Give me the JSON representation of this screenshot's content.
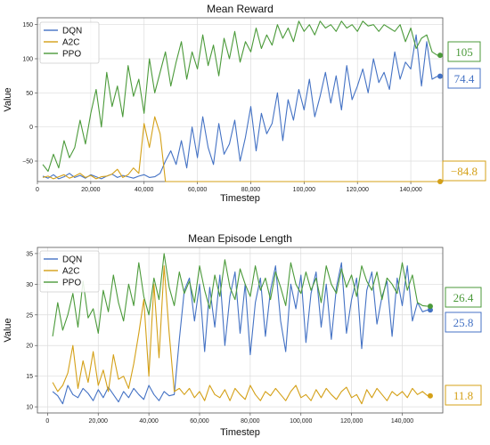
{
  "chart_data": [
    {
      "type": "line",
      "title": "Mean Reward",
      "xlabel": "Timestep",
      "ylabel": "Value",
      "xlim": [
        0,
        152000
      ],
      "ylim": [
        -80,
        160
      ],
      "xticks": [
        0,
        20000,
        40000,
        60000,
        80000,
        100000,
        120000,
        140000
      ],
      "xtick_labels": [
        "0",
        "20,000",
        "40,000",
        "60,000",
        "80,000",
        "100,000",
        "120,000",
        "140,000"
      ],
      "yticks": [
        -50,
        0,
        50,
        100,
        150
      ],
      "ytick_labels": [
        "−50",
        "0",
        "50",
        "100",
        "150"
      ],
      "grid": true,
      "legend_position": "top-left",
      "series": [
        {
          "name": "DQN",
          "color": "#4472c4",
          "x": [
            2000,
            4000,
            6000,
            8000,
            10000,
            12000,
            14000,
            16000,
            18000,
            20000,
            22000,
            24000,
            26000,
            28000,
            30000,
            32000,
            34000,
            36000,
            38000,
            40000,
            42000,
            44000,
            46000,
            48000,
            50000,
            52000,
            54000,
            56000,
            58000,
            60000,
            62000,
            64000,
            66000,
            68000,
            70000,
            72000,
            74000,
            76000,
            78000,
            80000,
            82000,
            84000,
            86000,
            88000,
            90000,
            92000,
            94000,
            96000,
            98000,
            100000,
            102000,
            104000,
            106000,
            108000,
            110000,
            112000,
            114000,
            116000,
            118000,
            120000,
            122000,
            124000,
            126000,
            128000,
            130000,
            132000,
            134000,
            136000,
            138000,
            140000,
            142000,
            144000,
            146000,
            148000,
            150000
          ],
          "values": [
            -72,
            -75,
            -70,
            -76,
            -73,
            -68,
            -74,
            -71,
            -75,
            -70,
            -73,
            -76,
            -72,
            -69,
            -74,
            -71,
            -73,
            -75,
            -72,
            -70,
            -74,
            -73,
            -68,
            -50,
            -35,
            -55,
            -20,
            -60,
            0,
            -45,
            15,
            -30,
            -55,
            5,
            -40,
            -25,
            10,
            -50,
            -15,
            30,
            -35,
            20,
            -10,
            5,
            50,
            -20,
            40,
            10,
            55,
            25,
            70,
            15,
            45,
            80,
            35,
            75,
            25,
            90,
            40,
            60,
            85,
            50,
            100,
            65,
            80,
            55,
            110,
            70,
            95,
            85,
            135,
            60,
            125,
            70,
            74.4
          ]
        },
        {
          "name": "A2C",
          "color": "#d4a017",
          "x": [
            2000,
            4000,
            6000,
            8000,
            10000,
            12000,
            14000,
            16000,
            18000,
            20000,
            22000,
            24000,
            26000,
            28000,
            30000,
            32000,
            34000,
            36000,
            38000,
            40000,
            42000,
            44000,
            46000,
            48000,
            50000,
            55000,
            60000,
            65000,
            70000,
            75000,
            80000,
            85000,
            90000,
            95000,
            100000,
            105000,
            110000,
            115000,
            120000,
            125000,
            130000,
            135000,
            140000,
            145000,
            150000
          ],
          "values": [
            -74,
            -72,
            -76,
            -73,
            -70,
            -75,
            -72,
            -68,
            -74,
            -71,
            -76,
            -73,
            -72,
            -69,
            -62,
            -74,
            -70,
            -60,
            -68,
            5,
            -30,
            15,
            -10,
            -80,
            -82,
            -81,
            -83,
            -80,
            -82,
            -81,
            -84,
            -80,
            -82,
            -83,
            -81,
            -84,
            -82,
            -80,
            -83,
            -81,
            -82,
            -84,
            -81,
            -83,
            -84.8
          ]
        },
        {
          "name": "PPO",
          "color": "#4b9a3a",
          "x": [
            2000,
            4000,
            6000,
            8000,
            10000,
            12000,
            14000,
            16000,
            18000,
            20000,
            22000,
            24000,
            26000,
            28000,
            30000,
            32000,
            34000,
            36000,
            38000,
            40000,
            42000,
            44000,
            46000,
            48000,
            50000,
            52000,
            54000,
            56000,
            58000,
            60000,
            62000,
            64000,
            66000,
            68000,
            70000,
            72000,
            74000,
            76000,
            78000,
            80000,
            82000,
            84000,
            86000,
            88000,
            90000,
            92000,
            94000,
            96000,
            98000,
            100000,
            102000,
            104000,
            106000,
            108000,
            110000,
            112000,
            114000,
            116000,
            118000,
            120000,
            122000,
            124000,
            126000,
            128000,
            130000,
            132000,
            134000,
            136000,
            138000,
            140000,
            142000,
            144000,
            146000,
            148000,
            150000
          ],
          "values": [
            -55,
            -65,
            -40,
            -60,
            -20,
            -45,
            -30,
            10,
            -25,
            20,
            55,
            0,
            80,
            30,
            60,
            15,
            90,
            45,
            70,
            20,
            100,
            50,
            80,
            110,
            60,
            95,
            125,
            70,
            110,
            85,
            135,
            90,
            120,
            75,
            130,
            100,
            140,
            95,
            125,
            110,
            145,
            115,
            135,
            120,
            150,
            130,
            145,
            125,
            155,
            140,
            150,
            135,
            155,
            145,
            150,
            140,
            155,
            145,
            150,
            140,
            155,
            148,
            150,
            140,
            150,
            145,
            140,
            150,
            125,
            145,
            115,
            130,
            135,
            110,
            105
          ]
        }
      ],
      "final_labels": [
        {
          "series": "PPO",
          "text": "105"
        },
        {
          "series": "DQN",
          "text": "74.4"
        },
        {
          "series": "A2C",
          "text": "−84.8"
        }
      ]
    },
    {
      "type": "line",
      "title": "Mean Episode Length",
      "xlabel": "Timestep",
      "ylabel": "Value",
      "xlim": [
        -4000,
        156000
      ],
      "ylim": [
        9,
        36
      ],
      "xticks": [
        0,
        20000,
        40000,
        60000,
        80000,
        100000,
        120000,
        140000
      ],
      "xtick_labels": [
        "0",
        "20,000",
        "40,000",
        "60,000",
        "80,000",
        "100,000",
        "120,000",
        "140,000"
      ],
      "yticks": [
        10,
        15,
        20,
        25,
        30,
        35
      ],
      "ytick_labels": [
        "10",
        "15",
        "20",
        "25",
        "30",
        "35"
      ],
      "grid": true,
      "legend_position": "top-left",
      "series": [
        {
          "name": "DQN",
          "color": "#4472c4",
          "x": [
            2000,
            4000,
            6000,
            8000,
            10000,
            12000,
            14000,
            16000,
            18000,
            20000,
            22000,
            24000,
            26000,
            28000,
            30000,
            32000,
            34000,
            36000,
            38000,
            40000,
            42000,
            44000,
            46000,
            48000,
            50000,
            52000,
            54000,
            56000,
            58000,
            60000,
            62000,
            64000,
            66000,
            68000,
            70000,
            72000,
            74000,
            76000,
            78000,
            80000,
            82000,
            84000,
            86000,
            88000,
            90000,
            92000,
            94000,
            96000,
            98000,
            100000,
            102000,
            104000,
            106000,
            108000,
            110000,
            112000,
            114000,
            116000,
            118000,
            120000,
            122000,
            124000,
            126000,
            128000,
            130000,
            132000,
            134000,
            136000,
            138000,
            140000,
            142000,
            144000,
            146000,
            148000,
            150000
          ],
          "values": [
            12.5,
            11.8,
            10.5,
            13.5,
            12.0,
            11.5,
            13.0,
            12.2,
            11.0,
            12.8,
            11.5,
            13.2,
            12.0,
            10.8,
            12.5,
            11.5,
            13.0,
            12.0,
            11.2,
            13.5,
            12.0,
            11.0,
            12.5,
            11.8,
            12.0,
            21.0,
            29.0,
            31.0,
            24.0,
            30.0,
            19.0,
            29.5,
            23.0,
            31.5,
            20.0,
            28.0,
            32.0,
            22.0,
            30.0,
            18.5,
            27.0,
            31.0,
            21.5,
            29.0,
            33.0,
            24.0,
            19.0,
            30.0,
            26.0,
            31.5,
            20.5,
            28.5,
            32.0,
            23.0,
            30.0,
            21.0,
            29.5,
            33.5,
            22.0,
            27.5,
            31.0,
            19.5,
            29.0,
            32.0,
            23.5,
            28.0,
            30.5,
            21.5,
            31.0,
            26.5,
            33.0,
            24.0,
            27.0,
            25.5,
            25.8
          ]
        },
        {
          "name": "A2C",
          "color": "#d4a017",
          "x": [
            2000,
            4000,
            6000,
            8000,
            10000,
            12000,
            14000,
            16000,
            18000,
            20000,
            22000,
            24000,
            26000,
            28000,
            30000,
            32000,
            34000,
            36000,
            38000,
            40000,
            42000,
            44000,
            46000,
            48000,
            50000,
            52000,
            54000,
            56000,
            58000,
            60000,
            62000,
            64000,
            66000,
            68000,
            70000,
            72000,
            74000,
            76000,
            78000,
            80000,
            82000,
            84000,
            86000,
            88000,
            90000,
            92000,
            94000,
            96000,
            98000,
            100000,
            102000,
            104000,
            106000,
            108000,
            110000,
            112000,
            114000,
            116000,
            118000,
            120000,
            122000,
            124000,
            126000,
            128000,
            130000,
            132000,
            134000,
            136000,
            138000,
            140000,
            142000,
            144000,
            146000,
            148000,
            150000
          ],
          "values": [
            14.0,
            12.5,
            13.5,
            15.5,
            20.0,
            13.0,
            17.5,
            14.0,
            19.0,
            13.5,
            16.0,
            12.5,
            18.5,
            14.5,
            15.0,
            13.0,
            17.0,
            22.0,
            27.5,
            15.0,
            30.0,
            18.0,
            33.0,
            22.0,
            12.5,
            13.0,
            12.0,
            13.0,
            11.5,
            12.5,
            11.0,
            13.5,
            12.0,
            11.5,
            12.8,
            11.0,
            13.0,
            12.0,
            11.2,
            13.5,
            12.0,
            11.0,
            12.5,
            11.8,
            13.0,
            12.0,
            11.0,
            12.5,
            13.5,
            11.5,
            12.0,
            11.0,
            12.8,
            11.5,
            13.0,
            12.0,
            11.2,
            12.5,
            13.2,
            11.5,
            12.0,
            10.5,
            12.8,
            11.5,
            13.0,
            12.0,
            11.0,
            12.5,
            11.8,
            12.5,
            11.5,
            13.0,
            12.0,
            12.5,
            11.8
          ]
        },
        {
          "name": "PPO",
          "color": "#4b9a3a",
          "x": [
            2000,
            4000,
            6000,
            8000,
            10000,
            12000,
            14000,
            16000,
            18000,
            20000,
            22000,
            24000,
            26000,
            28000,
            30000,
            32000,
            34000,
            36000,
            38000,
            40000,
            42000,
            44000,
            46000,
            48000,
            50000,
            52000,
            54000,
            56000,
            58000,
            60000,
            62000,
            64000,
            66000,
            68000,
            70000,
            72000,
            74000,
            76000,
            78000,
            80000,
            82000,
            84000,
            86000,
            88000,
            90000,
            92000,
            94000,
            96000,
            98000,
            100000,
            102000,
            104000,
            106000,
            108000,
            110000,
            112000,
            114000,
            116000,
            118000,
            120000,
            122000,
            124000,
            126000,
            128000,
            130000,
            132000,
            134000,
            136000,
            138000,
            140000,
            142000,
            144000,
            146000,
            148000,
            150000
          ],
          "values": [
            21.5,
            27.0,
            22.5,
            25.0,
            28.5,
            23.0,
            30.5,
            24.5,
            26.0,
            22.0,
            29.0,
            25.5,
            31.5,
            27.0,
            24.0,
            30.0,
            26.5,
            33.5,
            28.0,
            25.0,
            31.0,
            27.5,
            35.0,
            29.5,
            26.5,
            32.0,
            28.5,
            30.5,
            27.0,
            33.0,
            29.0,
            26.0,
            31.5,
            28.0,
            34.0,
            29.5,
            27.5,
            32.5,
            30.0,
            28.0,
            33.0,
            29.0,
            31.0,
            27.5,
            32.0,
            29.5,
            26.5,
            33.5,
            30.0,
            28.5,
            32.0,
            29.0,
            31.0,
            27.0,
            33.0,
            30.0,
            28.5,
            32.5,
            29.5,
            31.5,
            28.0,
            33.0,
            30.5,
            29.0,
            32.0,
            27.5,
            31.0,
            30.0,
            28.5,
            33.5,
            29.0,
            31.5,
            27.0,
            26.5,
            26.4
          ]
        }
      ],
      "final_labels": [
        {
          "series": "PPO",
          "text": "26.4"
        },
        {
          "series": "DQN",
          "text": "25.8"
        },
        {
          "series": "A2C",
          "text": "11.8"
        }
      ]
    }
  ]
}
